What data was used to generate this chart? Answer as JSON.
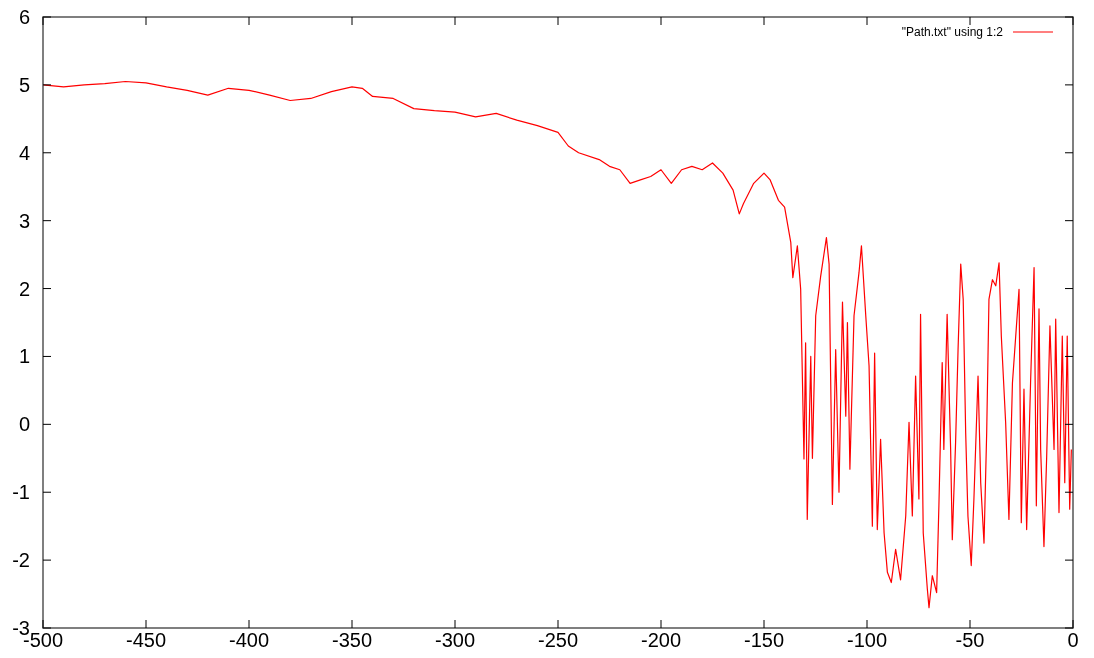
{
  "chart_data": {
    "type": "line",
    "legend": "top right",
    "line_style": "solid",
    "grid": false,
    "xlim": [
      -500,
      0
    ],
    "xticks": [
      -500,
      -450,
      -400,
      -350,
      -300,
      -250,
      -200,
      -150,
      -100,
      -50,
      0
    ],
    "ylim": [
      -3,
      6
    ],
    "yticks": [
      -3,
      -2,
      -1,
      0,
      1,
      2,
      3,
      4,
      5,
      6
    ],
    "series": [
      {
        "name": "\"Path.txt\" using 1:2",
        "color": "#ff0000",
        "x": [
          -500,
          -490,
          -480,
          -470,
          -460,
          -450,
          -440,
          -430,
          -420,
          -410,
          -400,
          -390,
          -380,
          -370,
          -360,
          -350,
          -345,
          -340,
          -330,
          -320,
          -310,
          -300,
          -290,
          -280,
          -270,
          -260,
          -250,
          -245,
          -240,
          -230,
          -225,
          -220,
          -215,
          -210,
          -205,
          -200,
          -195,
          -190,
          -185,
          -180,
          -175,
          -170,
          -165,
          -162,
          -160,
          -155,
          -150,
          -147,
          -143,
          -140,
          -137,
          -136,
          -133.8,
          -132.2,
          -130.6,
          -129.8,
          -129,
          -127.3,
          -126.5,
          -124.9,
          -122.5,
          -119.7,
          -118.4,
          -116.8,
          -115.2,
          -113.6,
          -111.9,
          -110.3,
          -109.5,
          -108.3,
          -106.3,
          -103.9,
          -102.7,
          -100.6,
          -99,
          -97.4,
          -96.3,
          -95,
          -93.4,
          -91.7,
          -90.1,
          -88.2,
          -86.1,
          -83.7,
          -81.2,
          -79.6,
          -78,
          -76.4,
          -74.8,
          -74,
          -72.7,
          -70.7,
          -69.9,
          -68.3,
          -66.2,
          -65.1,
          -63.5,
          -62.7,
          -61.1,
          -59.4,
          -58.6,
          -57,
          -55.8,
          -54.5,
          -53.3,
          -52.1,
          -51,
          -49.4,
          -48.1,
          -46.1,
          -44.8,
          -43.2,
          -41.9,
          -40.8,
          -39.1,
          -37.5,
          -35.9,
          -34.8,
          -32.7,
          -31.1,
          -29.4,
          -27.8,
          -26.2,
          -25.1,
          -23.8,
          -22.5,
          -20.6,
          -18.9,
          -17.8,
          -16.5,
          -15.7,
          -14.1,
          -12.8,
          -11.2,
          -9.2,
          -8.4,
          -6.8,
          -5.2,
          -4,
          -2.8,
          -1.6,
          -0.8
        ],
        "values": [
          5.0,
          4.97,
          5.0,
          5.02,
          5.05,
          5.03,
          4.97,
          4.92,
          4.85,
          4.95,
          4.92,
          4.85,
          4.77,
          4.8,
          4.9,
          4.97,
          4.95,
          4.83,
          4.8,
          4.65,
          4.62,
          4.6,
          4.53,
          4.58,
          4.48,
          4.4,
          4.3,
          4.1,
          4.0,
          3.9,
          3.8,
          3.75,
          3.55,
          3.6,
          3.65,
          3.75,
          3.55,
          3.75,
          3.8,
          3.75,
          3.85,
          3.7,
          3.45,
          3.1,
          3.25,
          3.55,
          3.7,
          3.6,
          3.3,
          3.2,
          2.68,
          2.16,
          2.63,
          1.99,
          -0.51,
          1.2,
          -1.4,
          1.0,
          -0.5,
          1.6,
          2.18,
          2.75,
          2.36,
          -1.18,
          1.1,
          -1.0,
          1.8,
          0.12,
          1.5,
          -0.66,
          1.6,
          2.23,
          2.63,
          1.6,
          0.86,
          -1.5,
          1.05,
          -1.55,
          -0.22,
          -1.6,
          -2.18,
          -2.33,
          -1.84,
          -2.29,
          -1.35,
          0.03,
          -1.35,
          0.71,
          -1.1,
          1.62,
          -1.6,
          -2.43,
          -2.7,
          -2.23,
          -2.48,
          -1.2,
          0.91,
          -0.37,
          1.62,
          -0.37,
          -1.7,
          -0.27,
          1.1,
          2.36,
          1.84,
          -0.12,
          -1.35,
          -2.08,
          -1.1,
          0.71,
          -0.86,
          -1.75,
          -0.12,
          1.84,
          2.13,
          2.04,
          2.38,
          1.3,
          0.03,
          -1.4,
          0.61,
          1.3,
          1.99,
          -1.45,
          0.52,
          -1.55,
          0.61,
          2.31,
          -1.2,
          1.7,
          -0.37,
          -1.8,
          -0.5,
          1.45,
          -0.37,
          1.55,
          -1.3,
          1.3,
          -0.86,
          1.3,
          -1.25,
          -0.37
        ]
      }
    ]
  }
}
